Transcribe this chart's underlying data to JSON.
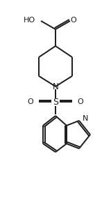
{
  "bg_color": "#ffffff",
  "line_color": "#1a1a1a",
  "line_width": 1.4,
  "font_size": 7.5,
  "figsize": [
    1.6,
    3.14
  ],
  "dpi": 100,
  "xlim": [
    0,
    160
  ],
  "ylim": [
    0,
    314
  ]
}
